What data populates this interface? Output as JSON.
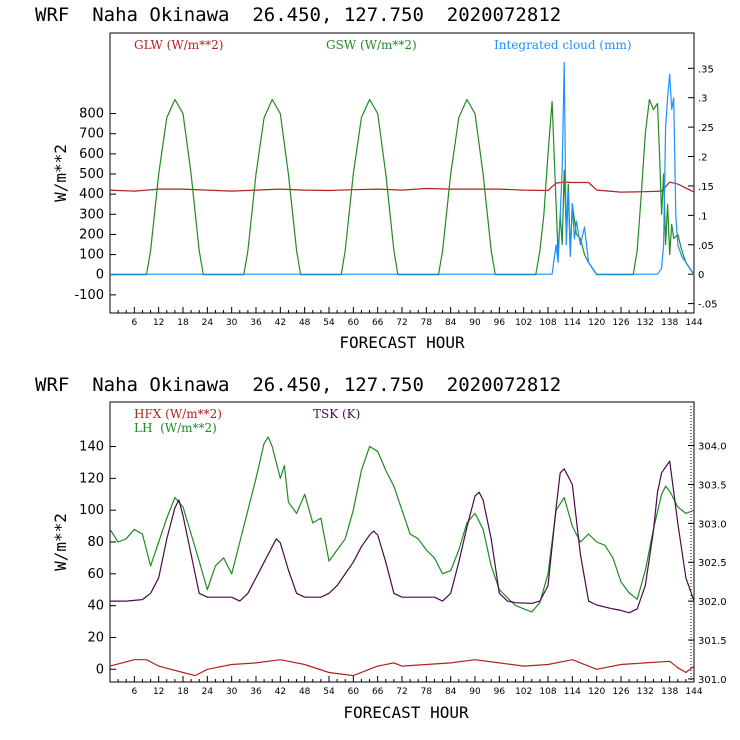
{
  "panels": [
    {
      "title": "WRF  Naha Okinawa  26.450, 127.750  2020072812",
      "xlabel": "FORECAST HOUR",
      "ylabel": "W/m**2",
      "legend": [
        {
          "text": "GLW (W/m**2)",
          "color": "#b22222"
        },
        {
          "text": "GSW (W/m**2)",
          "color": "#228b22"
        },
        {
          "text": "Integrated cloud (mm)",
          "color": "#1e90ff"
        }
      ]
    },
    {
      "title": "WRF  Naha Okinawa  26.450, 127.750  2020072812",
      "xlabel": "FORECAST HOUR",
      "ylabel": "W/m**2",
      "legend": [
        {
          "text": "HFX (W/m**2)",
          "color": "#b22222"
        },
        {
          "text": "LH  (W/m**2)",
          "color": "#228b22"
        },
        {
          "text": "TSK (K)",
          "color": "#4b0a4b"
        }
      ]
    }
  ],
  "chart_data": [
    {
      "type": "line",
      "x_ticks": [
        "6",
        "12",
        "18",
        "24",
        "30",
        "36",
        "42",
        "48",
        "54",
        "60",
        "66",
        "72",
        "78",
        "84",
        "90",
        "96",
        "102",
        "108",
        "114",
        "120",
        "126",
        "132",
        "138",
        "144"
      ],
      "xlim": [
        0,
        144
      ],
      "y_ticks": [
        "-100",
        "0",
        "100",
        "200",
        "300",
        "400",
        "500",
        "600",
        "700",
        "800"
      ],
      "ylim": [
        -190,
        1200
      ],
      "y2_ticks": [
        ".35",
        ".3",
        ".25",
        ".2",
        ".15",
        ".1",
        ".05",
        "0",
        "-.05"
      ],
      "y2lim": [
        -0.066,
        0.41
      ],
      "series": [
        {
          "name": "GLW (W/m**2)",
          "axis": "left",
          "color": "#b22222",
          "x": [
            0,
            6,
            12,
            18,
            24,
            30,
            36,
            42,
            48,
            54,
            60,
            66,
            72,
            78,
            84,
            90,
            96,
            102,
            108,
            110,
            112,
            114,
            118,
            120,
            126,
            132,
            136,
            138,
            140,
            144
          ],
          "y": [
            420,
            415,
            425,
            425,
            420,
            415,
            420,
            425,
            420,
            418,
            422,
            425,
            420,
            428,
            425,
            425,
            425,
            420,
            418,
            455,
            460,
            458,
            458,
            420,
            410,
            412,
            415,
            460,
            450,
            410
          ]
        },
        {
          "name": "GSW (W/m**2)",
          "axis": "left",
          "color": "#228b22",
          "x": [
            0,
            9,
            10,
            12,
            14,
            16,
            18,
            20,
            22,
            23,
            33,
            34,
            36,
            38,
            40,
            42,
            44,
            46,
            47,
            57,
            58,
            60,
            62,
            64,
            66,
            68,
            70,
            71,
            81,
            82,
            84,
            86,
            88,
            90,
            92,
            94,
            95,
            105,
            106,
            107,
            108,
            109,
            110,
            110.5,
            111,
            111.5,
            112,
            112.5,
            113,
            113.5,
            114,
            115,
            116,
            117,
            118,
            119,
            120,
            129,
            130,
            131,
            132,
            133,
            134,
            135,
            135.5,
            136,
            136.5,
            137,
            137.5,
            138,
            138.5,
            139,
            140,
            141,
            142,
            143,
            144
          ],
          "y": [
            0,
            0,
            120,
            500,
            780,
            870,
            800,
            500,
            120,
            0,
            0,
            120,
            500,
            780,
            870,
            800,
            500,
            120,
            0,
            0,
            120,
            500,
            780,
            870,
            800,
            500,
            120,
            0,
            0,
            120,
            500,
            780,
            870,
            800,
            500,
            120,
            0,
            0,
            120,
            300,
            600,
            860,
            350,
            100,
            300,
            150,
            520,
            200,
            450,
            100,
            350,
            200,
            180,
            100,
            60,
            30,
            0,
            0,
            120,
            400,
            700,
            870,
            820,
            850,
            600,
            300,
            500,
            150,
            350,
            100,
            250,
            180,
            200,
            120,
            60,
            30,
            0
          ]
        },
        {
          "name": "Integrated cloud (mm)",
          "axis": "right",
          "color": "#1e90ff",
          "x": [
            0,
            109,
            110,
            110.5,
            111,
            111.5,
            112,
            112.5,
            113,
            113.5,
            114,
            114.5,
            115,
            116,
            117,
            118,
            119,
            120,
            135,
            136,
            136.5,
            137,
            137.5,
            138,
            138.5,
            139,
            139.5,
            140,
            141,
            142,
            143,
            144
          ],
          "y": [
            0,
            0,
            0.05,
            0.02,
            0.1,
            0.18,
            0.36,
            0.05,
            0.14,
            0.03,
            0.12,
            0.06,
            0.09,
            0.05,
            0.08,
            0.02,
            0.01,
            0,
            0,
            0.01,
            0.05,
            0.25,
            0.3,
            0.34,
            0.28,
            0.3,
            0.1,
            0.05,
            0.03,
            0.02,
            0.01,
            0
          ]
        }
      ]
    },
    {
      "type": "line",
      "x_ticks": [
        "6",
        "12",
        "18",
        "24",
        "30",
        "36",
        "42",
        "48",
        "54",
        "60",
        "66",
        "72",
        "78",
        "84",
        "90",
        "96",
        "102",
        "108",
        "114",
        "120",
        "126",
        "132",
        "138",
        "144"
      ],
      "xlim": [
        0,
        144
      ],
      "y_ticks": [
        "0",
        "20",
        "40",
        "60",
        "80",
        "100",
        "120",
        "140"
      ],
      "ylim": [
        -8,
        168
      ],
      "y2_ticks": [
        "304.0",
        "303.5",
        "303.0",
        "302.5",
        "302.0",
        "301.5",
        "301.0"
      ],
      "y2lim": [
        300.96,
        304.56
      ],
      "series": [
        {
          "name": "HFX (W/m**2)",
          "axis": "left",
          "color": "#b22222",
          "x": [
            0,
            6,
            9,
            12,
            18,
            21,
            24,
            30,
            36,
            42,
            48,
            54,
            60,
            66,
            70,
            72,
            78,
            84,
            90,
            96,
            102,
            108,
            114,
            120,
            126,
            132,
            138,
            140,
            142,
            144
          ],
          "y": [
            2,
            6,
            6,
            2,
            -2,
            -4,
            0,
            3,
            4,
            6,
            3,
            -2,
            -4,
            2,
            4,
            2,
            3,
            4,
            6,
            4,
            2,
            3,
            6,
            0,
            3,
            4,
            5,
            1,
            -2,
            2
          ]
        },
        {
          "name": "LH  (W/m**2)",
          "axis": "left",
          "color": "#228b22",
          "x": [
            0,
            2,
            4,
            6,
            8,
            10,
            12,
            14,
            16,
            18,
            20,
            22,
            24,
            26,
            28,
            30,
            32,
            34,
            36,
            38,
            39,
            40,
            42,
            43,
            44,
            46,
            48,
            50,
            52,
            54,
            56,
            58,
            60,
            62,
            64,
            66,
            68,
            70,
            72,
            74,
            76,
            78,
            80,
            82,
            84,
            86,
            88,
            90,
            92,
            94,
            96,
            98,
            100,
            102,
            104,
            106,
            108,
            110,
            112,
            114,
            116,
            118,
            120,
            122,
            124,
            126,
            128,
            130,
            132,
            134,
            136,
            137,
            138,
            140,
            142,
            144
          ],
          "y": [
            88,
            80,
            82,
            88,
            85,
            65,
            80,
            95,
            108,
            102,
            85,
            68,
            50,
            65,
            70,
            60,
            80,
            100,
            120,
            142,
            146,
            140,
            120,
            128,
            105,
            98,
            110,
            92,
            95,
            68,
            75,
            82,
            100,
            125,
            140,
            137,
            125,
            115,
            100,
            85,
            82,
            75,
            70,
            60,
            62,
            75,
            92,
            98,
            88,
            65,
            50,
            45,
            40,
            38,
            36,
            42,
            60,
            100,
            108,
            90,
            80,
            85,
            80,
            78,
            70,
            55,
            48,
            44,
            62,
            88,
            110,
            115,
            112,
            102,
            98,
            100
          ]
        },
        {
          "name": "TSK (K)",
          "axis": "right",
          "color": "#4b0a4b",
          "x": [
            0,
            4,
            8,
            10,
            12,
            14,
            16,
            17,
            18,
            20,
            22,
            24,
            28,
            30,
            32,
            34,
            36,
            38,
            40,
            41,
            42,
            44,
            46,
            48,
            52,
            54,
            56,
            58,
            60,
            62,
            64,
            65,
            66,
            68,
            70,
            72,
            76,
            80,
            82,
            84,
            86,
            88,
            90,
            91,
            92,
            94,
            96,
            98,
            100,
            104,
            106,
            108,
            110,
            111,
            112,
            114,
            116,
            118,
            120,
            124,
            126,
            128,
            130,
            132,
            134,
            135,
            136,
            138,
            140,
            142,
            144
          ],
          "y": [
            302.0,
            302.0,
            302.02,
            302.1,
            302.3,
            302.8,
            303.2,
            303.3,
            303.1,
            302.6,
            302.1,
            302.05,
            302.05,
            302.05,
            302.0,
            302.1,
            302.3,
            302.5,
            302.7,
            302.8,
            302.75,
            302.4,
            302.1,
            302.05,
            302.05,
            302.1,
            302.2,
            302.35,
            302.5,
            302.7,
            302.85,
            302.9,
            302.85,
            302.5,
            302.1,
            302.05,
            302.05,
            302.05,
            302.0,
            302.1,
            302.5,
            302.95,
            303.35,
            303.4,
            303.3,
            302.8,
            302.1,
            302.0,
            301.98,
            301.97,
            302.0,
            302.2,
            303.2,
            303.65,
            303.7,
            303.5,
            302.6,
            302.0,
            301.95,
            301.9,
            301.88,
            301.85,
            301.9,
            302.2,
            302.9,
            303.4,
            303.65,
            303.8,
            303.0,
            302.3,
            302.0
          ]
        }
      ]
    }
  ]
}
